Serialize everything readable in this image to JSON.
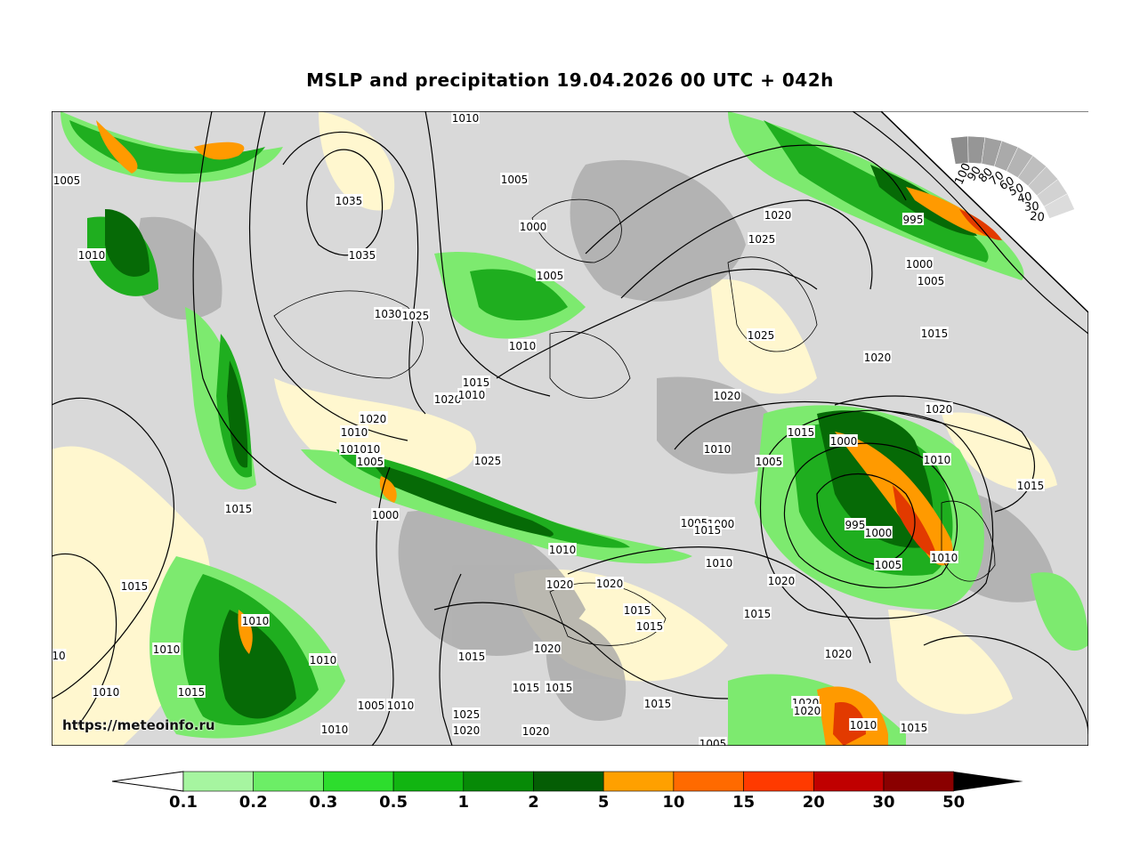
{
  "title": "MSLP and precipitation 19.04.2026 00 UTC + 042h",
  "watermark": "https://meteoinfo.ru",
  "map": {
    "isobar_labels": [
      {
        "text": "1005"
      },
      {
        "text": "1010"
      },
      {
        "text": "1035"
      },
      {
        "text": "1035"
      },
      {
        "text": "1010"
      },
      {
        "text": "1005"
      },
      {
        "text": "1000"
      },
      {
        "text": "1005"
      },
      {
        "text": "1030"
      },
      {
        "text": "1025"
      },
      {
        "text": "1010"
      },
      {
        "text": "1015"
      },
      {
        "text": "1020"
      },
      {
        "text": "1015"
      },
      {
        "text": "1010"
      },
      {
        "text": "1020"
      },
      {
        "text": "1015"
      },
      {
        "text": "1010"
      },
      {
        "text": "1005"
      },
      {
        "text": "1000"
      },
      {
        "text": "1025"
      },
      {
        "text": "1015"
      },
      {
        "text": "1015"
      },
      {
        "text": "1010"
      },
      {
        "text": "1010"
      },
      {
        "text": "1015"
      },
      {
        "text": "1010"
      },
      {
        "text": "1010"
      },
      {
        "text": "1010"
      },
      {
        "text": "1005"
      },
      {
        "text": "1010"
      },
      {
        "text": "1025"
      },
      {
        "text": "1020"
      },
      {
        "text": "1010"
      },
      {
        "text": "1020"
      },
      {
        "text": "1015"
      },
      {
        "text": "1015"
      },
      {
        "text": "1020"
      },
      {
        "text": "1015"
      },
      {
        "text": "1015"
      },
      {
        "text": "1020"
      },
      {
        "text": "1020"
      },
      {
        "text": "1015"
      },
      {
        "text": "1005"
      },
      {
        "text": "1000"
      },
      {
        "text": "1005"
      },
      {
        "text": "1010"
      },
      {
        "text": "1020"
      },
      {
        "text": "1025"
      },
      {
        "text": "1020"
      },
      {
        "text": "995"
      },
      {
        "text": "1000"
      },
      {
        "text": "1005"
      },
      {
        "text": "1015"
      },
      {
        "text": "1020"
      },
      {
        "text": "1025"
      },
      {
        "text": "1020"
      },
      {
        "text": "1010"
      },
      {
        "text": "1005"
      },
      {
        "text": "1015"
      },
      {
        "text": "1000"
      },
      {
        "text": "995"
      },
      {
        "text": "1000"
      },
      {
        "text": "1005"
      },
      {
        "text": "1010"
      },
      {
        "text": "1010"
      },
      {
        "text": "1015"
      },
      {
        "text": "1020"
      },
      {
        "text": "1020"
      },
      {
        "text": "1015"
      },
      {
        "text": "1020"
      },
      {
        "text": "1015"
      },
      {
        "text": "1010"
      },
      {
        "text": "1015"
      },
      {
        "text": "1005"
      },
      {
        "text": "1020"
      },
      {
        "text": "1010"
      },
      {
        "text": "1015"
      },
      {
        "text": "10"
      }
    ]
  },
  "cloud_scale": {
    "labels": [
      "100",
      "90",
      "80",
      "70",
      "60",
      "50",
      "40",
      "30",
      "20"
    ],
    "colors": [
      "#8c8c8c",
      "#969696",
      "#a0a0a0",
      "#aaaaaa",
      "#b4b4b4",
      "#bebebe",
      "#c8c8c8",
      "#d2d2d2",
      "#dcdcdc"
    ]
  },
  "colorbar": {
    "labels": [
      "0.1",
      "0.2",
      "0.3",
      "0.5",
      "1",
      "2",
      "5",
      "10",
      "15",
      "20",
      "30",
      "50"
    ],
    "colors": [
      "#a6f5a0",
      "#6cee66",
      "#2ddd2d",
      "#11b511",
      "#078a07",
      "#045d04",
      "#ffa000",
      "#ff6a00",
      "#ff3a00",
      "#c00000",
      "#8a0000"
    ],
    "under_color": "#ffffff",
    "over_color": "#000000"
  },
  "map_colors": {
    "land_light": "#fff7cf",
    "cloud_grey": "#a8a8a8",
    "precip_light": "#7dea6f",
    "precip_mid": "#1fae1f",
    "precip_dark": "#066a06",
    "precip_orange": "#ff9a00",
    "precip_red": "#e23a00",
    "isobar": "#000000"
  }
}
